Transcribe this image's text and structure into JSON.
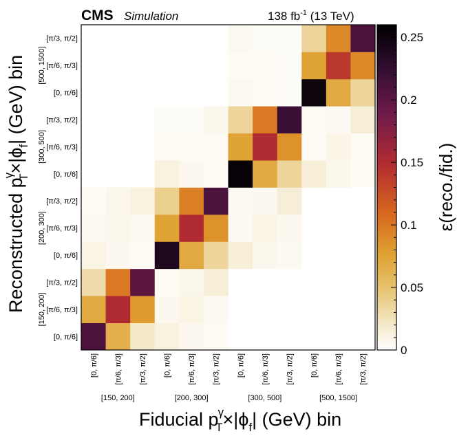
{
  "header": {
    "experiment": "CMS",
    "status": "Simulation",
    "lumi": "138 fb",
    "lumi_exp": "-1",
    "energy": " (13 TeV)"
  },
  "chart_data": {
    "type": "heatmap",
    "title": "",
    "xlabel_parts": {
      "pre": "Fiducial p",
      "sup": "γ",
      "sub": "T",
      "mid": "×|ϕ",
      "sub2": "f",
      "post": "| (GeV) bin"
    },
    "ylabel_parts": {
      "pre": "Reconstructed p",
      "sup": "γ",
      "sub": "T",
      "mid": "×|ϕ",
      "sub2": "f",
      "post": "| (GeV) bin"
    },
    "phi_bins": [
      "[0, π/6]",
      "[π/6, π/3]",
      "[π/3, π/2]"
    ],
    "pt_bins": [
      "[150, 200]",
      "[200, 300]",
      "[300, 500]",
      "[500, 1500]"
    ],
    "x_categories": [
      "[0, π/6]",
      "[π/6, π/3]",
      "[π/3, π/2]",
      "[0, π/6]",
      "[π/6, π/3]",
      "[π/3, π/2]",
      "[0, π/6]",
      "[π/6, π/3]",
      "[π/3, π/2]",
      "[0, π/6]",
      "[π/6, π/3]",
      "[π/3, π/2]"
    ],
    "y_categories_bottom_to_top": [
      "[0, π/6]",
      "[π/6, π/3]",
      "[π/3, π/2]",
      "[0, π/6]",
      "[π/6, π/3]",
      "[π/3, π/2]",
      "[0, π/6]",
      "[π/6, π/3]",
      "[π/3, π/2]",
      "[0, π/6]",
      "[π/6, π/3]",
      "[π/3, π/2]"
    ],
    "values_rows_bottom_to_top": [
      [
        0.21,
        0.065,
        0.02,
        0.012,
        0.006,
        0.004,
        null,
        null,
        null,
        null,
        null,
        null
      ],
      [
        0.07,
        0.15,
        0.08,
        0.006,
        0.01,
        0.005,
        null,
        null,
        null,
        null,
        null,
        null
      ],
      [
        0.03,
        0.1,
        0.2,
        0.004,
        0.008,
        0.015,
        null,
        null,
        null,
        null,
        null,
        null
      ],
      [
        0.01,
        0.006,
        0.004,
        0.24,
        0.07,
        0.035,
        0.015,
        0.007,
        0.005,
        null,
        null,
        null
      ],
      [
        0.005,
        0.007,
        0.005,
        0.075,
        0.15,
        0.085,
        0.005,
        0.01,
        0.006,
        null,
        null,
        null
      ],
      [
        0.004,
        0.007,
        0.012,
        0.04,
        0.095,
        0.21,
        0.005,
        0.006,
        0.015,
        null,
        null,
        null
      ],
      [
        null,
        null,
        null,
        0.012,
        0.006,
        0.004,
        0.255,
        0.07,
        0.035,
        0.015,
        0.007,
        0.004
      ],
      [
        null,
        null,
        null,
        0.004,
        0.004,
        0.004,
        0.075,
        0.15,
        0.085,
        0.004,
        0.009,
        0.004
      ],
      [
        null,
        null,
        null,
        0.003,
        0.003,
        0.007,
        0.035,
        0.1,
        0.22,
        0.004,
        0.005,
        0.015
      ],
      [
        null,
        null,
        null,
        null,
        null,
        null,
        0.005,
        0.004,
        0.003,
        0.25,
        0.07,
        0.035
      ],
      [
        null,
        null,
        null,
        null,
        null,
        null,
        0.004,
        0.004,
        0.003,
        0.075,
        0.14,
        0.09
      ],
      [
        null,
        null,
        null,
        null,
        null,
        null,
        0.005,
        0.003,
        0.003,
        0.035,
        0.09,
        0.21
      ]
    ],
    "zlim": [
      0,
      0.26
    ],
    "colorbar_ticks": [
      0,
      0.05,
      0.1,
      0.15,
      0.2,
      0.25
    ],
    "colorbar_label": "ε(reco./fid.)"
  }
}
